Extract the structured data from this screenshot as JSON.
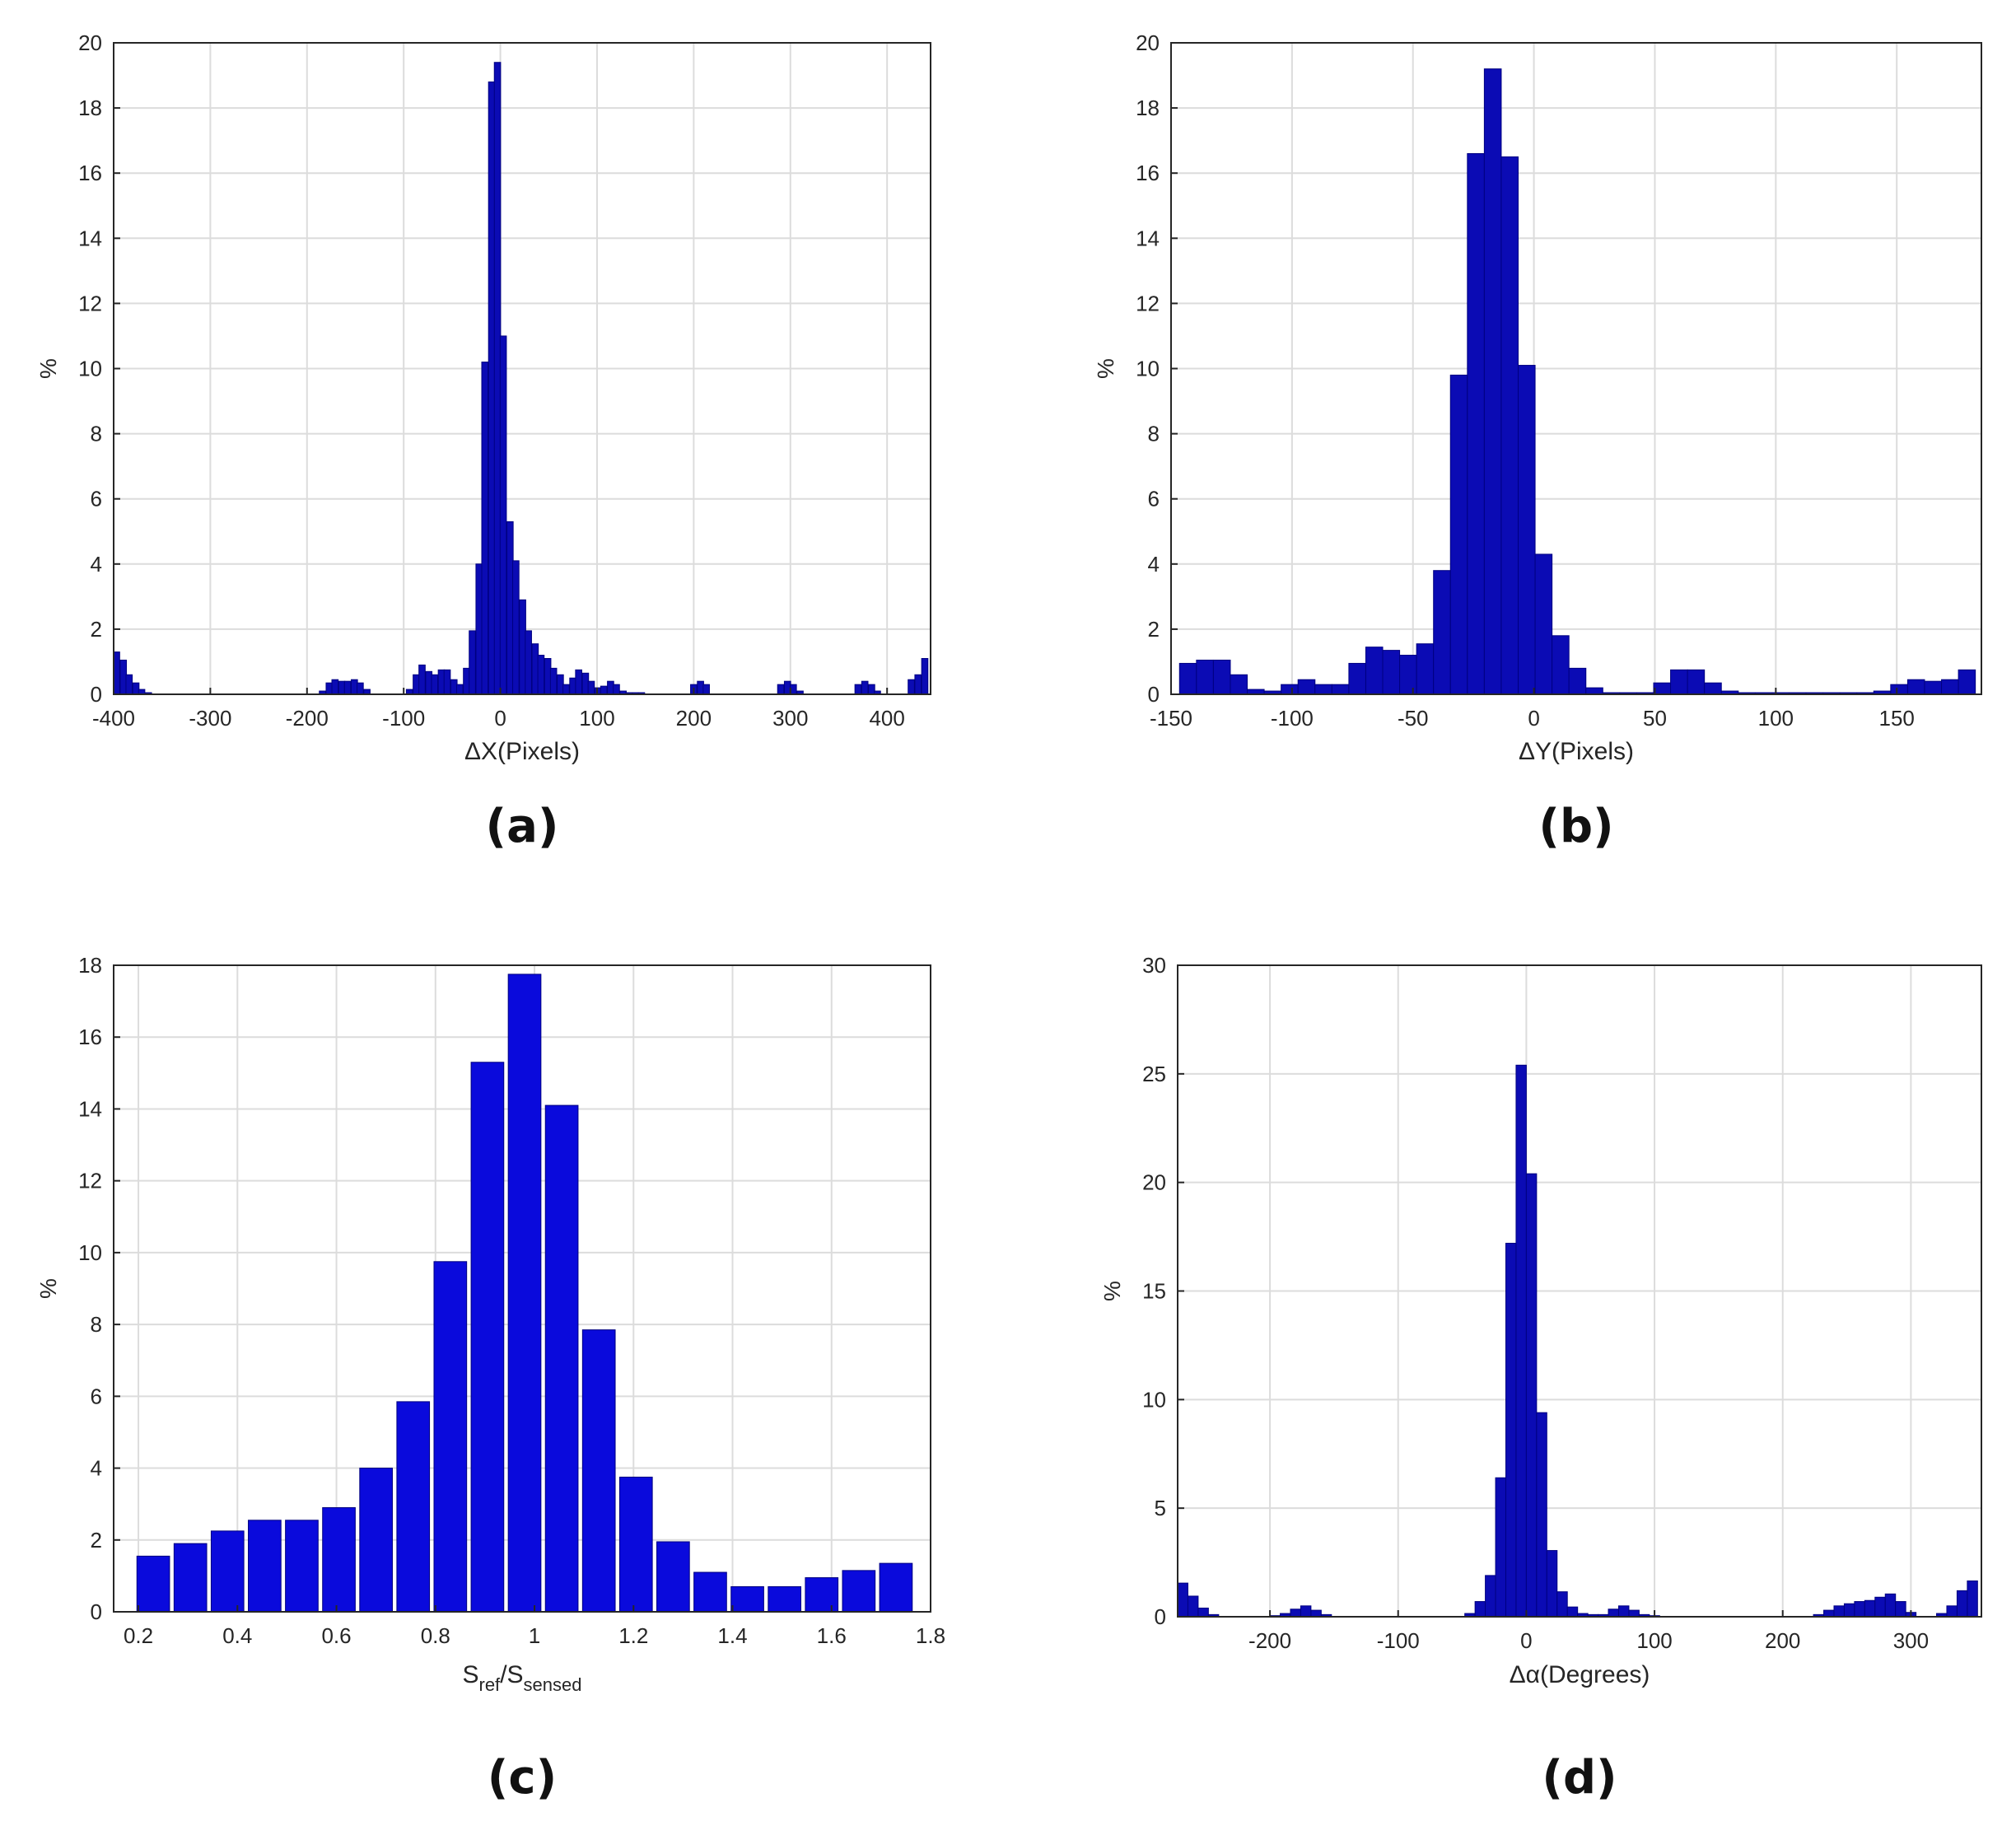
{
  "colors": {
    "bar_fill": "#0a0adc",
    "bar_fill_dark": "#0b0bb4",
    "bar_edge": "#000080"
  },
  "chart_data": [
    {
      "id": "a",
      "type": "bar",
      "caption": "(a)",
      "xlabel": "ΔX(Pixels)",
      "ylabel": "%",
      "xlim": [
        -400,
        445
      ],
      "ylim": [
        0,
        20
      ],
      "xticks": [
        -400,
        -300,
        -200,
        -100,
        0,
        100,
        200,
        300,
        400
      ],
      "yticks": [
        0,
        2,
        4,
        6,
        8,
        10,
        12,
        14,
        16,
        18,
        20
      ],
      "grid": true,
      "bin_width": 6.5,
      "x": [
        -397,
        -390,
        -384,
        -377,
        -371,
        -364,
        -184,
        -177,
        -171,
        -164,
        -158,
        -151,
        -145,
        -138,
        -94,
        -87,
        -81,
        -74,
        -68,
        -61,
        -55,
        -48,
        -42,
        -35,
        -29,
        -22,
        -16,
        -9,
        -3,
        3,
        10,
        16,
        23,
        29,
        36,
        42,
        49,
        55,
        62,
        68,
        75,
        81,
        88,
        94,
        101,
        107,
        114,
        120,
        127,
        133,
        140,
        146,
        200,
        207,
        213,
        290,
        297,
        303,
        310,
        370,
        377,
        384,
        390,
        425,
        432,
        439
      ],
      "values": [
        1.3,
        1.05,
        0.6,
        0.35,
        0.15,
        0.05,
        0.1,
        0.35,
        0.45,
        0.4,
        0.4,
        0.45,
        0.35,
        0.15,
        0.15,
        0.6,
        0.9,
        0.7,
        0.6,
        0.75,
        0.75,
        0.45,
        0.3,
        0.8,
        1.95,
        4.0,
        10.2,
        18.8,
        19.4,
        11.0,
        5.3,
        4.1,
        2.9,
        1.95,
        1.55,
        1.2,
        1.1,
        0.8,
        0.6,
        0.3,
        0.5,
        0.75,
        0.65,
        0.4,
        0.2,
        0.25,
        0.4,
        0.3,
        0.1,
        0.05,
        0.05,
        0.05,
        0.3,
        0.4,
        0.3,
        0.3,
        0.4,
        0.3,
        0.1,
        0.3,
        0.4,
        0.3,
        0.1,
        0.45,
        0.6,
        1.1
      ]
    },
    {
      "id": "b",
      "type": "bar",
      "caption": "(b)",
      "xlabel": "ΔY(Pixels)",
      "ylabel": "%",
      "xlim": [
        -150,
        185
      ],
      "ylim": [
        0,
        20
      ],
      "xticks": [
        -150,
        -100,
        -50,
        0,
        50,
        100,
        150
      ],
      "yticks": [
        0,
        2,
        4,
        6,
        8,
        10,
        12,
        14,
        16,
        18,
        20
      ],
      "grid": true,
      "bin_width": 7,
      "x": [
        -143,
        -136,
        -129,
        -122,
        -115,
        -108,
        -101,
        -94,
        -87,
        -80,
        -73,
        -66,
        -59,
        -52,
        -45,
        -38,
        -31,
        -24,
        -17,
        -10,
        -3,
        4,
        11,
        18,
        25,
        32,
        39,
        46,
        53,
        60,
        67,
        74,
        81,
        88,
        95,
        102,
        109,
        116,
        123,
        130,
        137,
        144,
        151,
        158,
        165,
        172,
        179
      ],
      "values": [
        0.95,
        1.05,
        1.05,
        0.6,
        0.15,
        0.1,
        0.3,
        0.45,
        0.3,
        0.3,
        0.95,
        1.45,
        1.35,
        1.2,
        1.55,
        3.8,
        9.8,
        16.6,
        19.2,
        16.5,
        10.1,
        4.3,
        1.8,
        0.8,
        0.2,
        0.05,
        0.05,
        0.05,
        0.35,
        0.75,
        0.75,
        0.35,
        0.1,
        0.05,
        0.05,
        0.05,
        0.05,
        0.05,
        0.05,
        0.05,
        0.05,
        0.1,
        0.3,
        0.45,
        0.4,
        0.45,
        0.75
      ]
    },
    {
      "id": "c",
      "type": "bar",
      "caption": "(c)",
      "xlabel_main": "S",
      "xlabel_sub1": "ref",
      "xlabel_sep": "/S",
      "xlabel_sub2": "sensed",
      "ylabel": "%",
      "xlim": [
        0.15,
        1.8
      ],
      "ylim": [
        0,
        18
      ],
      "xticks": [
        0.2,
        0.4,
        0.6,
        0.8,
        1,
        1.2,
        1.4,
        1.6,
        1.8
      ],
      "yticks": [
        0,
        2,
        4,
        6,
        8,
        10,
        12,
        14,
        16,
        18
      ],
      "grid": true,
      "bin_width": 0.075,
      "x": [
        0.23,
        0.305,
        0.38,
        0.455,
        0.53,
        0.605,
        0.68,
        0.755,
        0.83,
        0.905,
        0.98,
        1.055,
        1.13,
        1.205,
        1.28,
        1.355,
        1.43,
        1.505,
        1.58,
        1.655,
        1.73
      ],
      "values": [
        1.55,
        1.9,
        2.25,
        2.55,
        2.55,
        2.9,
        4.0,
        5.85,
        9.75,
        15.3,
        17.75,
        14.1,
        7.85,
        3.75,
        1.95,
        1.1,
        0.7,
        0.7,
        0.95,
        1.15,
        1.35
      ]
    },
    {
      "id": "d",
      "type": "bar",
      "caption": "(d)",
      "xlabel": "Δα(Degrees)",
      "ylabel": "%",
      "xlim": [
        -272,
        355
      ],
      "ylim": [
        0,
        30
      ],
      "xticks": [
        -200,
        -100,
        0,
        100,
        200,
        300
      ],
      "yticks": [
        0,
        5,
        10,
        15,
        20,
        25,
        30
      ],
      "grid": true,
      "bin_width": 8,
      "x": [
        -268,
        -260,
        -252,
        -244,
        -196,
        -188,
        -180,
        -172,
        -164,
        -156,
        -44,
        -36,
        -28,
        -20,
        -12,
        -4,
        4,
        12,
        20,
        28,
        36,
        44,
        52,
        60,
        68,
        76,
        84,
        92,
        100,
        228,
        236,
        244,
        252,
        260,
        268,
        276,
        284,
        292,
        300,
        324,
        332,
        340,
        348
      ],
      "values": [
        1.55,
        0.95,
        0.4,
        0.1,
        0.05,
        0.15,
        0.35,
        0.5,
        0.3,
        0.1,
        0.15,
        0.7,
        1.9,
        6.4,
        17.2,
        25.4,
        20.4,
        9.4,
        3.05,
        1.15,
        0.45,
        0.15,
        0.1,
        0.1,
        0.35,
        0.5,
        0.3,
        0.1,
        0.05,
        0.1,
        0.3,
        0.5,
        0.6,
        0.7,
        0.75,
        0.9,
        1.05,
        0.7,
        0.2,
        0.15,
        0.5,
        1.2,
        1.65
      ]
    }
  ]
}
